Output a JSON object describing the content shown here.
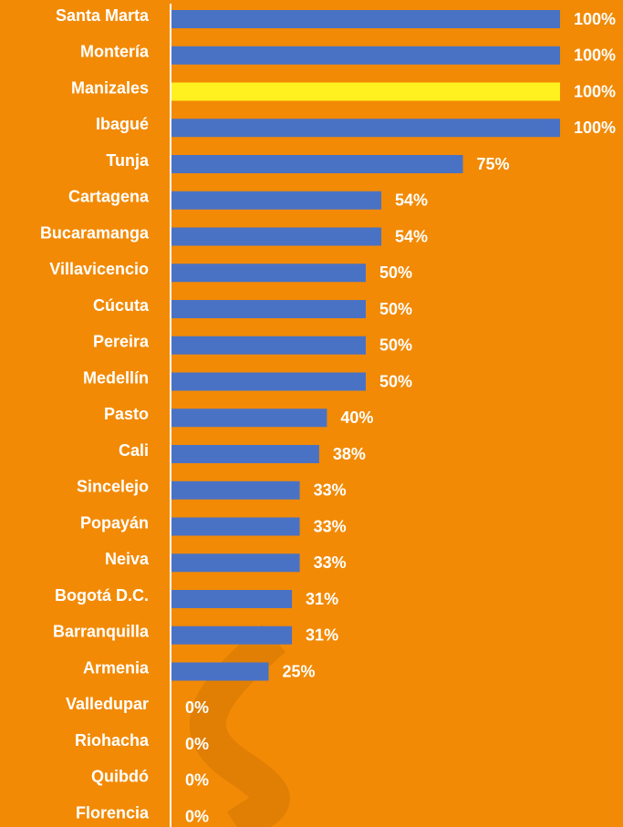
{
  "chart_data": {
    "type": "bar",
    "orientation": "horizontal",
    "categories": [
      "Santa Marta",
      "Montería",
      "Manizales",
      "Ibagué",
      "Tunja",
      "Cartagena",
      "Bucaramanga",
      "Villavicencio",
      "Cúcuta",
      "Pereira",
      "Medellín",
      "Pasto",
      "Cali",
      "Sincelejo",
      "Popayán",
      "Neiva",
      "Bogotá D.C.",
      "Barranquilla",
      "Armenia",
      "Valledupar",
      "Riohacha",
      "Quibdó",
      "Florencia"
    ],
    "values": [
      100,
      100,
      100,
      100,
      75,
      54,
      54,
      50,
      50,
      50,
      50,
      40,
      38,
      33,
      33,
      33,
      31,
      31,
      25,
      0,
      0,
      0,
      0
    ],
    "value_labels": [
      "100%",
      "100%",
      "100%",
      "100%",
      "75%",
      "54%",
      "54%",
      "50%",
      "50%",
      "50%",
      "50%",
      "40%",
      "38%",
      "33%",
      "33%",
      "33%",
      "31%",
      "31%",
      "25%",
      "0%",
      "0%",
      "0%",
      "0%"
    ],
    "colors": [
      "#4a72c4",
      "#4a72c4",
      "#fff01f",
      "#4a72c4",
      "#4a72c4",
      "#4a72c4",
      "#4a72c4",
      "#4a72c4",
      "#4a72c4",
      "#4a72c4",
      "#4a72c4",
      "#4a72c4",
      "#4a72c4",
      "#4a72c4",
      "#4a72c4",
      "#4a72c4",
      "#4a72c4",
      "#4a72c4",
      "#4a72c4",
      "#4a72c4",
      "#4a72c4",
      "#4a72c4",
      "#4a72c4"
    ]
  }
}
